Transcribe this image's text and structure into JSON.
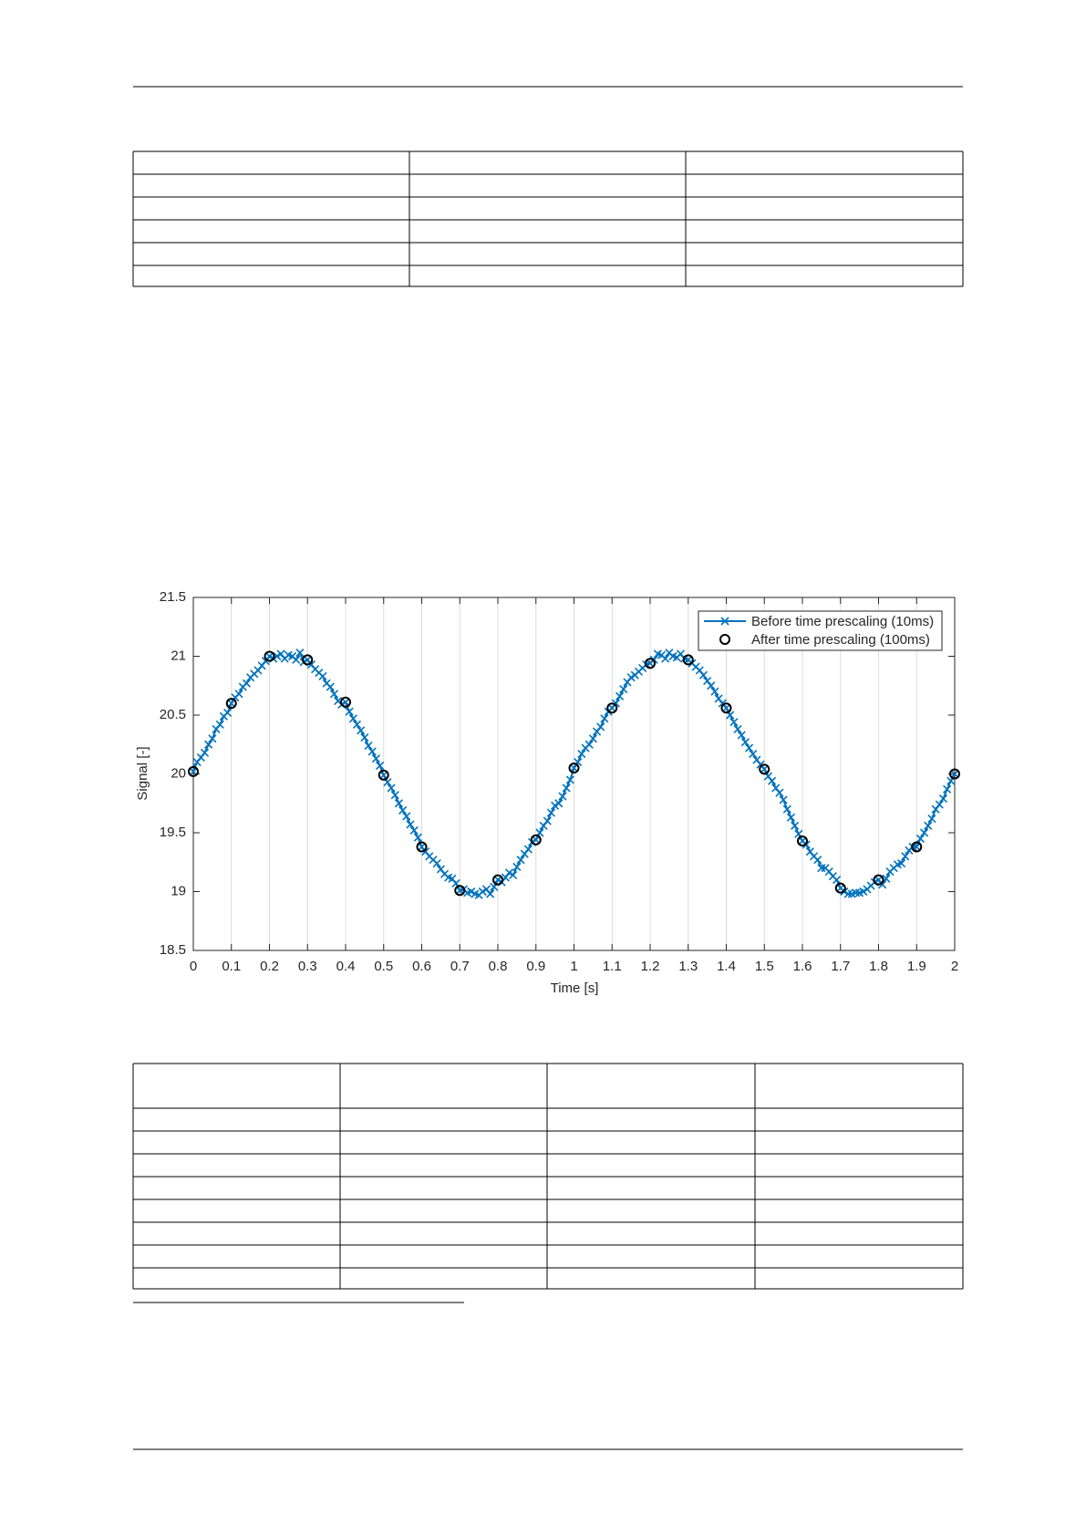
{
  "chart_data": {
    "type": "line",
    "xlabel": "Time [s]",
    "ylabel": "Signal [-]",
    "xlim": [
      0,
      2
    ],
    "ylim": [
      18.5,
      21.5
    ],
    "xticks": [
      0,
      0.1,
      0.2,
      0.3,
      0.4,
      0.5,
      0.6,
      0.7,
      0.8,
      0.9,
      1,
      1.1,
      1.2,
      1.3,
      1.4,
      1.5,
      1.6,
      1.7,
      1.8,
      1.9,
      2
    ],
    "yticks": [
      18.5,
      19,
      19.5,
      20,
      20.5,
      21,
      21.5
    ],
    "xgrid": true,
    "legend": "upper right",
    "series": [
      {
        "name": "Before time prescaling (10ms)",
        "color": "#0072bd",
        "marker": "x",
        "line": true,
        "x": [
          0,
          0.01,
          0.02,
          0.03,
          0.04,
          0.05,
          0.06,
          0.07,
          0.08,
          0.09,
          0.1,
          0.11,
          0.12,
          0.13,
          0.14,
          0.15,
          0.16,
          0.17,
          0.18,
          0.19,
          0.2,
          0.21,
          0.22,
          0.23,
          0.24,
          0.25,
          0.26,
          0.27,
          0.28,
          0.29,
          0.3,
          0.31,
          0.32,
          0.33,
          0.34,
          0.35,
          0.36,
          0.37,
          0.38,
          0.39,
          0.4,
          0.41,
          0.42,
          0.43,
          0.44,
          0.45,
          0.46,
          0.47,
          0.48,
          0.49,
          0.5,
          0.51,
          0.52,
          0.53,
          0.54,
          0.55,
          0.56,
          0.57,
          0.58,
          0.59,
          0.6,
          0.61,
          0.62,
          0.63,
          0.64,
          0.65,
          0.66,
          0.67,
          0.68,
          0.69,
          0.7,
          0.71,
          0.72,
          0.73,
          0.74,
          0.75,
          0.76,
          0.77,
          0.78,
          0.79,
          0.8,
          0.81,
          0.82,
          0.83,
          0.84,
          0.85,
          0.86,
          0.87,
          0.88,
          0.89,
          0.9,
          0.91,
          0.92,
          0.93,
          0.94,
          0.95,
          0.96,
          0.97,
          0.98,
          0.99,
          1,
          1.01,
          1.02,
          1.03,
          1.04,
          1.05,
          1.06,
          1.07,
          1.08,
          1.09,
          1.1,
          1.11,
          1.12,
          1.13,
          1.14,
          1.15,
          1.16,
          1.17,
          1.18,
          1.19,
          1.2,
          1.21,
          1.22,
          1.23,
          1.24,
          1.25,
          1.26,
          1.27,
          1.28,
          1.29,
          1.3,
          1.31,
          1.32,
          1.33,
          1.34,
          1.35,
          1.36,
          1.37,
          1.38,
          1.39,
          1.4,
          1.41,
          1.42,
          1.43,
          1.44,
          1.45,
          1.46,
          1.47,
          1.48,
          1.49,
          1.5,
          1.51,
          1.52,
          1.53,
          1.54,
          1.55,
          1.56,
          1.57,
          1.58,
          1.59,
          1.6,
          1.61,
          1.62,
          1.63,
          1.64,
          1.65,
          1.66,
          1.67,
          1.68,
          1.69,
          1.7,
          1.71,
          1.72,
          1.73,
          1.74,
          1.75,
          1.76,
          1.77,
          1.78,
          1.79,
          1.8,
          1.81,
          1.82,
          1.83,
          1.84,
          1.85,
          1.86,
          1.87,
          1.88,
          1.89,
          1.9,
          1.91,
          1.92,
          1.93,
          1.94,
          1.95,
          1.96,
          1.97,
          1.98,
          1.99,
          2
        ],
        "values": [
          20.02,
          20.1,
          20.14,
          20.18,
          20.25,
          20.3,
          20.38,
          20.42,
          20.49,
          20.52,
          20.6,
          20.65,
          20.68,
          20.74,
          20.77,
          20.82,
          20.85,
          20.88,
          20.92,
          20.96,
          21.0,
          20.98,
          21.0,
          21.02,
          20.98,
          21.01,
          21.0,
          20.97,
          21.03,
          20.95,
          20.97,
          20.93,
          20.89,
          20.86,
          20.83,
          20.77,
          20.74,
          20.68,
          20.62,
          20.59,
          20.61,
          20.53,
          20.47,
          20.42,
          20.37,
          20.31,
          20.24,
          20.19,
          20.13,
          20.07,
          19.99,
          19.93,
          19.88,
          19.82,
          19.75,
          19.69,
          19.64,
          19.57,
          19.52,
          19.46,
          19.38,
          19.34,
          19.3,
          19.27,
          19.24,
          19.19,
          19.15,
          19.12,
          19.11,
          19.07,
          19.01,
          19.02,
          18.99,
          19.0,
          18.98,
          18.97,
          19.0,
          19.02,
          18.98,
          19.04,
          19.1,
          19.08,
          19.12,
          19.16,
          19.14,
          19.21,
          19.27,
          19.32,
          19.36,
          19.42,
          19.44,
          19.5,
          19.56,
          19.6,
          19.67,
          19.73,
          19.75,
          19.81,
          19.88,
          19.95,
          20.05,
          20.1,
          20.17,
          20.22,
          20.25,
          20.3,
          20.36,
          20.4,
          20.47,
          20.53,
          20.56,
          20.6,
          20.66,
          20.72,
          20.78,
          20.82,
          20.84,
          20.87,
          20.9,
          20.93,
          20.94,
          20.97,
          21.02,
          21.01,
          20.98,
          21.03,
          21.0,
          20.99,
          21.02,
          20.98,
          20.97,
          20.94,
          20.91,
          20.88,
          20.84,
          20.79,
          20.75,
          20.7,
          20.64,
          20.6,
          20.56,
          20.5,
          20.44,
          20.38,
          20.33,
          20.27,
          20.22,
          20.17,
          20.12,
          20.08,
          20.04,
          19.98,
          19.94,
          19.88,
          19.84,
          19.78,
          19.7,
          19.63,
          19.56,
          19.49,
          19.43,
          19.4,
          19.34,
          19.3,
          19.27,
          19.2,
          19.2,
          19.17,
          19.13,
          19.1,
          19.03,
          19.0,
          18.98,
          18.98,
          18.99,
          18.99,
          19.0,
          19.02,
          19.05,
          19.08,
          19.1,
          19.06,
          19.11,
          19.17,
          19.2,
          19.23,
          19.24,
          19.3,
          19.35,
          19.38,
          19.38,
          19.45,
          19.5,
          19.56,
          19.62,
          19.7,
          19.74,
          19.79,
          19.87,
          19.94,
          20.0
        ]
      },
      {
        "name": "After time prescaling (100ms)",
        "color": "#000000",
        "marker": "o",
        "line": false,
        "x": [
          0,
          0.1,
          0.2,
          0.3,
          0.4,
          0.5,
          0.6,
          0.7,
          0.8,
          0.9,
          1,
          1.1,
          1.2,
          1.3,
          1.4,
          1.5,
          1.6,
          1.7,
          1.8,
          1.9,
          2
        ],
        "values": [
          20.02,
          20.6,
          21.0,
          20.97,
          20.61,
          19.99,
          19.38,
          19.01,
          19.1,
          19.44,
          20.05,
          20.56,
          20.94,
          20.97,
          20.56,
          20.04,
          19.43,
          19.03,
          19.1,
          19.38,
          20.0
        ]
      }
    ]
  }
}
